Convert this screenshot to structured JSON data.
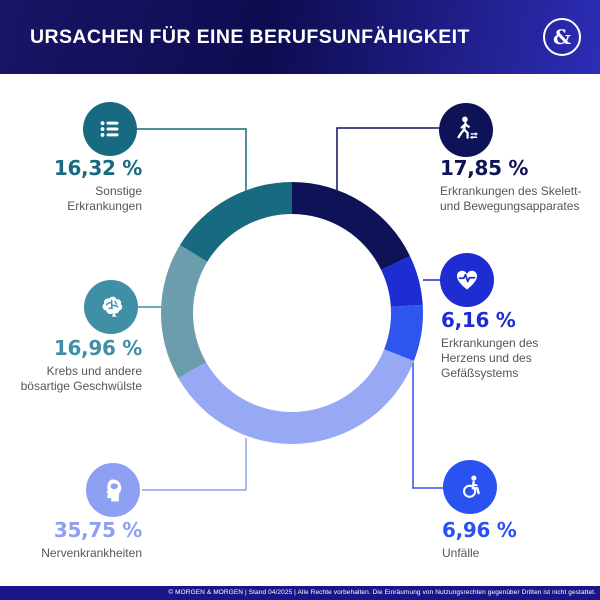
{
  "header": {
    "title": "URSACHEN FÜR EINE BERUFSUNFÄHIGKEIT",
    "logo_glyph": "&"
  },
  "chart_data": {
    "type": "donut",
    "title": "Ursachen für eine Berufsunfähigkeit",
    "unit": "%",
    "direction": "clockwise",
    "start_angle_deg": 0,
    "legend_position": "callouts-around-chart",
    "segments": [
      {
        "id": "skelett",
        "label": "Erkrankungen des Skelett-\nund Bewegungsapparates",
        "value": 17.85,
        "display": "17,85 %",
        "color": "#0d1356",
        "icon": "walking-person-icon",
        "icon_color": "#0d1356"
      },
      {
        "id": "herz",
        "label": "Erkrankungen des\nHerzens und des\nGefäßsystems",
        "value": 6.16,
        "display": "6,16 %",
        "color": "#1e2dd2",
        "icon": "heart-pulse-icon",
        "icon_color": "#1e2dd2"
      },
      {
        "id": "unfaelle",
        "label": "Unfälle",
        "value": 6.96,
        "display": "6,96 %",
        "color": "#2e55f0",
        "icon": "wheelchair-icon",
        "icon_color": "#2a52f0"
      },
      {
        "id": "nerven",
        "label": "Nervenkrankheiten",
        "value": 35.75,
        "display": "35,75 %",
        "color": "#97a9f4",
        "icon": "head-silhouette-icon",
        "icon_color": "#8da0f1"
      },
      {
        "id": "krebs",
        "label": "Krebs und andere\nbösartige Geschwülste",
        "value": 16.96,
        "display": "16,96 %",
        "color": "#6c9dac",
        "icon": "brain-icon",
        "icon_color": "#3f8fa6"
      },
      {
        "id": "sonstige",
        "label": "Sonstige\nErkrankungen",
        "value": 16.32,
        "display": "16,32 %",
        "color": "#176a80",
        "icon": "list-icon",
        "icon_color": "#176a80"
      }
    ]
  },
  "footer": {
    "text": "© MORGEN & MORGEN | Stand 04/2025 | Alle Rechte vorbehalten. Die Einräumung von Nutzungsrechten gegenüber Dritten ist nicht gestattet."
  }
}
